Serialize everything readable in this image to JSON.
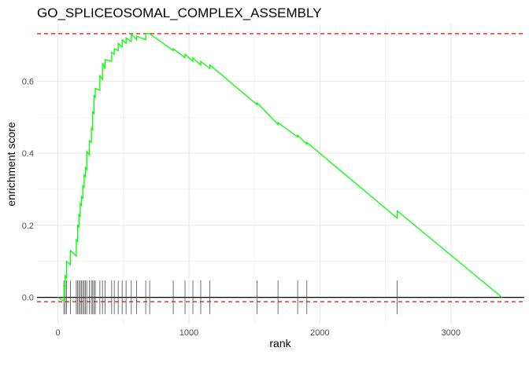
{
  "chart_data": {
    "type": "line",
    "title": "GO_SPLICEOSOMAL_COMPLEX_ASSEMBLY",
    "xlabel": "rank",
    "ylabel": "enrichment score",
    "xlim": [
      -160,
      3560
    ],
    "ylim": [
      -0.075,
      0.76
    ],
    "x_ticks": [
      0,
      1000,
      2000,
      3000
    ],
    "x_tick_labels": [
      "0",
      "1000",
      "2000",
      "3000"
    ],
    "y_ticks": [
      0.0,
      0.2,
      0.4,
      0.6
    ],
    "y_tick_labels": [
      "0.0",
      "0.2",
      "0.4",
      "0.6"
    ],
    "grid": true,
    "colors": {
      "curve": "#00ff00",
      "threshold": "#ff0000",
      "baseline": "#000000",
      "ticks": "#4d4d4d",
      "grid": "#ebebeb"
    },
    "thresholds": [
      0.732,
      -0.012
    ],
    "hit_ranks": [
      45,
      55,
      65,
      95,
      140,
      150,
      160,
      170,
      180,
      190,
      200,
      210,
      220,
      240,
      255,
      265,
      275,
      285,
      320,
      340,
      360,
      410,
      430,
      460,
      490,
      520,
      560,
      600,
      670,
      700,
      880,
      970,
      1030,
      1090,
      1160,
      1520,
      1680,
      1830,
      1900,
      2590
    ],
    "series": [
      {
        "x": [
          0,
          45,
          45,
          55,
          55,
          65,
          65,
          95,
          95,
          140,
          140,
          150,
          150,
          160,
          160,
          170,
          170,
          180,
          180,
          190,
          190,
          200,
          200,
          210,
          210,
          220,
          220,
          240,
          240,
          255,
          255,
          265,
          265,
          275,
          275,
          285,
          285,
          320,
          320,
          340,
          340,
          360,
          360,
          410,
          410,
          430,
          430,
          460,
          460,
          490,
          490,
          520,
          520,
          560,
          560,
          600,
          600,
          670,
          670,
          700,
          700,
          880,
          880,
          970,
          970,
          1030,
          1030,
          1090,
          1090,
          1160,
          1160,
          1520,
          1520,
          1680,
          1680,
          1830,
          1830,
          1900,
          1900,
          2590,
          2590,
          3390
        ],
        "y": [
          0.0,
          -0.01,
          0.035,
          0.03,
          0.06,
          0.055,
          0.1,
          0.09,
          0.13,
          0.115,
          0.16,
          0.155,
          0.2,
          0.195,
          0.23,
          0.225,
          0.26,
          0.255,
          0.28,
          0.275,
          0.31,
          0.305,
          0.34,
          0.335,
          0.36,
          0.355,
          0.405,
          0.395,
          0.435,
          0.43,
          0.47,
          0.465,
          0.515,
          0.51,
          0.56,
          0.555,
          0.58,
          0.575,
          0.615,
          0.605,
          0.65,
          0.635,
          0.66,
          0.655,
          0.68,
          0.675,
          0.69,
          0.685,
          0.705,
          0.695,
          0.715,
          0.705,
          0.72,
          0.71,
          0.732,
          0.715,
          0.725,
          0.715,
          0.732,
          0.732,
          0.732,
          0.685,
          0.69,
          0.665,
          0.675,
          0.655,
          0.665,
          0.645,
          0.655,
          0.635,
          0.645,
          0.535,
          0.54,
          0.48,
          0.485,
          0.445,
          0.45,
          0.425,
          0.43,
          0.22,
          0.24,
          0.0
        ]
      }
    ]
  }
}
